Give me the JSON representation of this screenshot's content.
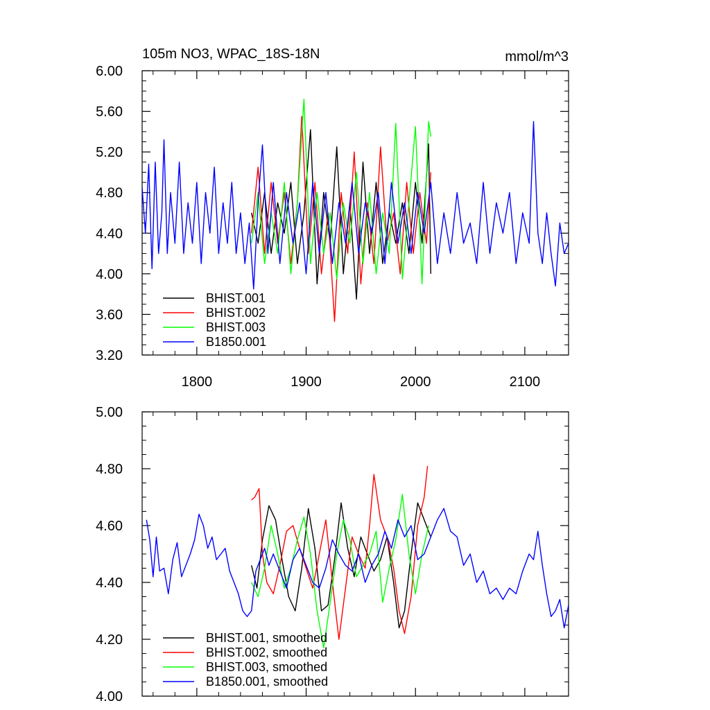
{
  "chart_data": [
    {
      "type": "line",
      "title": "105m NO3, WPAC_18S-18N",
      "units": "mmol/m^3",
      "xlim": [
        1750,
        2140
      ],
      "ylim": [
        3.2,
        6.0
      ],
      "xticks": [
        1800,
        1900,
        2000,
        2100
      ],
      "xtick_labels": [
        "1800",
        "1900",
        "2000",
        "2100"
      ],
      "yticks": [
        3.2,
        3.6,
        4.0,
        4.4,
        4.8,
        5.2,
        5.6,
        6.0
      ],
      "ytick_labels": [
        "3.20",
        "3.60",
        "4.00",
        "4.40",
        "4.80",
        "5.20",
        "5.60",
        "6.00"
      ],
      "legend_position": "lower-left",
      "series": [
        {
          "name": "BHIST.001",
          "color": "#000000",
          "x": [
            1850,
            1856,
            1862,
            1868,
            1874,
            1880,
            1886,
            1892,
            1898,
            1904,
            1910,
            1916,
            1922,
            1928,
            1934,
            1940,
            1946,
            1952,
            1958,
            1964,
            1970,
            1976,
            1982,
            1988,
            1994,
            2000,
            2006,
            2012,
            2014
          ],
          "y": [
            4.6,
            4.3,
            4.8,
            4.2,
            4.7,
            4.4,
            4.9,
            4.1,
            4.6,
            5.42,
            3.9,
            4.8,
            4.3,
            5.25,
            4.0,
            4.7,
            3.75,
            5.1,
            4.2,
            4.9,
            4.1,
            4.6,
            4.3,
            4.7,
            4.2,
            4.9,
            4.3,
            5.28,
            4.0
          ]
        },
        {
          "name": "BHIST.002",
          "color": "#ff0000",
          "x": [
            1850,
            1856,
            1862,
            1868,
            1874,
            1880,
            1886,
            1892,
            1896,
            1902,
            1908,
            1914,
            1920,
            1926,
            1932,
            1938,
            1944,
            1950,
            1956,
            1962,
            1968,
            1974,
            1980,
            1986,
            1992,
            1998,
            2004,
            2010,
            2014
          ],
          "y": [
            4.4,
            5.05,
            4.2,
            4.9,
            4.3,
            4.8,
            4.1,
            4.7,
            5.55,
            4.2,
            4.9,
            4.0,
            4.6,
            3.53,
            4.8,
            4.2,
            5.2,
            3.9,
            4.7,
            4.1,
            5.25,
            4.3,
            4.6,
            4.0,
            4.9,
            4.2,
            4.8,
            4.3,
            5.0
          ]
        },
        {
          "name": "BHIST.003",
          "color": "#00ff00",
          "x": [
            1850,
            1856,
            1862,
            1868,
            1874,
            1880,
            1886,
            1892,
            1898,
            1904,
            1910,
            1916,
            1922,
            1928,
            1934,
            1940,
            1946,
            1952,
            1958,
            1964,
            1970,
            1976,
            1982,
            1988,
            1994,
            2000,
            2006,
            2012,
            2014
          ],
          "y": [
            4.3,
            4.8,
            4.1,
            4.6,
            4.2,
            4.9,
            4.0,
            4.7,
            5.72,
            4.1,
            4.8,
            4.2,
            4.6,
            3.95,
            4.7,
            4.3,
            5.0,
            4.1,
            4.8,
            4.0,
            4.6,
            4.2,
            5.48,
            3.95,
            4.7,
            5.45,
            3.9,
            5.5,
            5.35
          ]
        },
        {
          "name": "B1850.001",
          "color": "#0000ff",
          "x": [
            1750,
            1753,
            1756,
            1759,
            1762,
            1765,
            1768,
            1770,
            1773,
            1776,
            1780,
            1784,
            1788,
            1792,
            1796,
            1800,
            1804,
            1808,
            1812,
            1816,
            1820,
            1824,
            1828,
            1832,
            1836,
            1840,
            1844,
            1848,
            1852,
            1856,
            1860,
            1865,
            1870,
            1876,
            1882,
            1888,
            1894,
            1900,
            1906,
            1912,
            1918,
            1924,
            1930,
            1936,
            1942,
            1948,
            1954,
            1960,
            1966,
            1972,
            1978,
            1984,
            1990,
            1996,
            2002,
            2008,
            2014,
            2020,
            2026,
            2032,
            2038,
            2044,
            2050,
            2056,
            2062,
            2068,
            2074,
            2080,
            2086,
            2092,
            2098,
            2104,
            2108,
            2112,
            2116,
            2120,
            2124,
            2128,
            2132,
            2136,
            2140
          ],
          "y": [
            4.85,
            4.4,
            5.08,
            4.05,
            5.1,
            4.2,
            4.6,
            5.32,
            4.2,
            4.8,
            4.3,
            5.1,
            4.2,
            4.7,
            4.3,
            4.9,
            4.1,
            4.8,
            4.4,
            5.05,
            4.2,
            4.7,
            4.3,
            4.9,
            4.2,
            4.6,
            4.1,
            4.5,
            3.85,
            4.7,
            5.27,
            4.2,
            4.9,
            4.1,
            4.8,
            4.3,
            4.7,
            4.0,
            4.9,
            4.2,
            4.8,
            4.1,
            4.7,
            4.3,
            4.9,
            4.2,
            4.7,
            4.4,
            4.8,
            4.1,
            4.9,
            4.3,
            4.7,
            4.2,
            4.8,
            4.4,
            4.9,
            4.1,
            4.6,
            4.2,
            4.8,
            4.3,
            4.5,
            4.1,
            4.9,
            4.2,
            4.7,
            4.4,
            4.8,
            4.1,
            4.6,
            4.3,
            5.5,
            4.4,
            4.1,
            4.6,
            4.2,
            3.88,
            4.5,
            4.2,
            4.3
          ]
        }
      ]
    },
    {
      "type": "line",
      "title": "",
      "xlim": [
        1750,
        2140
      ],
      "ylim": [
        4.0,
        5.0
      ],
      "xticks": [
        1800,
        1900,
        2000,
        2100
      ],
      "yticks": [
        4.0,
        4.2,
        4.4,
        4.6,
        4.8,
        5.0
      ],
      "ytick_labels": [
        "4.00",
        "4.20",
        "4.40",
        "4.60",
        "4.80",
        "5.00"
      ],
      "legend_position": "lower-left",
      "series": [
        {
          "name": "BHIST.001, smoothed",
          "color": "#000000",
          "x": [
            1850,
            1855,
            1860,
            1866,
            1872,
            1878,
            1884,
            1890,
            1896,
            1902,
            1908,
            1914,
            1920,
            1926,
            1932,
            1938,
            1944,
            1950,
            1956,
            1962,
            1968,
            1974,
            1980,
            1985,
            1990,
            1996,
            2002,
            2008,
            2014
          ],
          "y": [
            4.46,
            4.38,
            4.55,
            4.67,
            4.62,
            4.48,
            4.35,
            4.3,
            4.45,
            4.66,
            4.52,
            4.3,
            4.32,
            4.48,
            4.68,
            4.52,
            4.42,
            4.56,
            4.5,
            4.44,
            4.48,
            4.56,
            4.4,
            4.24,
            4.3,
            4.5,
            4.68,
            4.62,
            4.56
          ]
        },
        {
          "name": "BHIST.002, smoothed",
          "color": "#ff0000",
          "x": [
            1850,
            1853,
            1857,
            1860,
            1864,
            1870,
            1876,
            1882,
            1888,
            1894,
            1900,
            1906,
            1912,
            1918,
            1924,
            1930,
            1936,
            1942,
            1948,
            1954,
            1958,
            1962,
            1968,
            1974,
            1980,
            1985,
            1990,
            1996,
            2002,
            2008,
            2011
          ],
          "y": [
            4.69,
            4.7,
            4.73,
            4.5,
            4.4,
            4.36,
            4.46,
            4.58,
            4.6,
            4.52,
            4.45,
            4.38,
            4.5,
            4.62,
            4.4,
            4.2,
            4.38,
            4.56,
            4.5,
            4.45,
            4.6,
            4.78,
            4.62,
            4.56,
            4.45,
            4.3,
            4.22,
            4.35,
            4.6,
            4.7,
            4.81
          ]
        },
        {
          "name": "BHIST.003, smoothed",
          "color": "#00ff00",
          "x": [
            1850,
            1856,
            1862,
            1868,
            1874,
            1880,
            1886,
            1892,
            1898,
            1904,
            1910,
            1916,
            1922,
            1928,
            1934,
            1940,
            1946,
            1952,
            1958,
            1964,
            1970,
            1976,
            1982,
            1988,
            1994,
            2000,
            2006,
            2012
          ],
          "y": [
            4.4,
            4.35,
            4.45,
            4.6,
            4.5,
            4.38,
            4.45,
            4.55,
            4.63,
            4.5,
            4.3,
            4.17,
            4.33,
            4.5,
            4.62,
            4.55,
            4.42,
            4.46,
            4.5,
            4.58,
            4.33,
            4.45,
            4.55,
            4.71,
            4.5,
            4.36,
            4.5,
            4.6
          ]
        },
        {
          "name": "B1850.001, smoothed",
          "color": "#0000ff",
          "x": [
            1754,
            1757,
            1760,
            1763,
            1766,
            1770,
            1774,
            1778,
            1782,
            1786,
            1790,
            1794,
            1798,
            1802,
            1806,
            1810,
            1814,
            1818,
            1822,
            1826,
            1830,
            1834,
            1838,
            1842,
            1846,
            1850,
            1854,
            1858,
            1862,
            1866,
            1870,
            1876,
            1882,
            1888,
            1894,
            1900,
            1906,
            1912,
            1918,
            1924,
            1930,
            1936,
            1942,
            1948,
            1954,
            1960,
            1966,
            1972,
            1978,
            1984,
            1990,
            1996,
            2002,
            2008,
            2014,
            2020,
            2026,
            2032,
            2038,
            2044,
            2050,
            2056,
            2062,
            2068,
            2074,
            2080,
            2086,
            2092,
            2098,
            2104,
            2108,
            2112,
            2116,
            2120,
            2124,
            2128,
            2132,
            2136,
            2140
          ],
          "y": [
            4.62,
            4.55,
            4.42,
            4.56,
            4.44,
            4.45,
            4.36,
            4.48,
            4.54,
            4.42,
            4.46,
            4.5,
            4.55,
            4.64,
            4.6,
            4.52,
            4.56,
            4.48,
            4.5,
            4.52,
            4.44,
            4.4,
            4.36,
            4.3,
            4.28,
            4.3,
            4.44,
            4.48,
            4.52,
            4.46,
            4.5,
            4.44,
            4.38,
            4.48,
            4.52,
            4.46,
            4.4,
            4.38,
            4.45,
            4.55,
            4.5,
            4.46,
            4.44,
            4.5,
            4.4,
            4.46,
            4.5,
            4.58,
            4.52,
            4.62,
            4.56,
            4.6,
            4.48,
            4.5,
            4.56,
            4.62,
            4.66,
            4.58,
            4.56,
            4.46,
            4.5,
            4.4,
            4.44,
            4.36,
            4.38,
            4.34,
            4.38,
            4.36,
            4.44,
            4.5,
            4.48,
            4.58,
            4.46,
            4.36,
            4.28,
            4.3,
            4.34,
            4.24,
            4.32
          ]
        }
      ]
    }
  ]
}
